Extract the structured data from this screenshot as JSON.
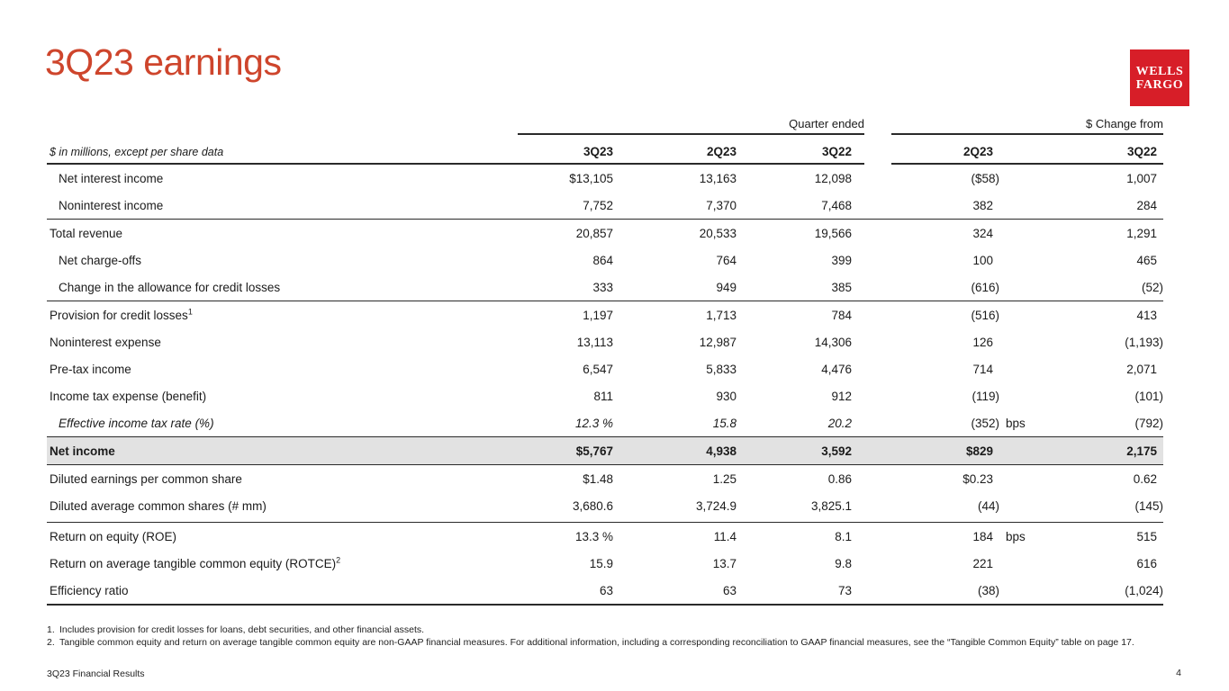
{
  "slide": {
    "title": "3Q23 earnings",
    "footer": "3Q23 Financial Results",
    "page_number": "4"
  },
  "logo": {
    "line1": "WELLS",
    "line2": "FARGO",
    "bg_color": "#D71E28",
    "text_color": "#FFFFFF"
  },
  "colors": {
    "title_red": "#CE452C",
    "highlight_row_bg": "#E2E2E2",
    "rule_line": "#2A2A2A"
  },
  "table": {
    "note": "$ in millions, except per share data",
    "group_headers": [
      {
        "label": "Quarter ended",
        "span": 3
      },
      {
        "label": "$ Change from",
        "span": 2
      }
    ],
    "column_headers": [
      "3Q23",
      "2Q23",
      "3Q22",
      "2Q23",
      "3Q22"
    ],
    "rows": [
      {
        "label": "Net interest income",
        "indent": true,
        "values": [
          "$13,105",
          "13,163",
          "12,098",
          "($58)",
          "1,007"
        ]
      },
      {
        "label": "Noninterest income",
        "indent": true,
        "values": [
          "7,752",
          "7,370",
          "7,468",
          "382",
          "284"
        ]
      },
      {
        "label": "Total revenue",
        "border_top": true,
        "values": [
          "20,857",
          "20,533",
          "19,566",
          "324",
          "1,291"
        ]
      },
      {
        "label": "Net charge-offs",
        "indent": true,
        "values": [
          "864",
          "764",
          "399",
          "100",
          "465"
        ]
      },
      {
        "label": "Change in the allowance for credit losses",
        "indent": true,
        "values": [
          "333",
          "949",
          "385",
          "(616)",
          "(52)"
        ]
      },
      {
        "label": "Provision for credit losses",
        "sup": "1",
        "border_top": true,
        "values": [
          "1,197",
          "1,713",
          "784",
          "(516)",
          "413"
        ]
      },
      {
        "label": "Noninterest expense",
        "values": [
          "13,113",
          "12,987",
          "14,306",
          "126",
          "(1,193)"
        ]
      },
      {
        "label": "Pre-tax income",
        "values": [
          "6,547",
          "5,833",
          "4,476",
          "714",
          "2,071"
        ]
      },
      {
        "label": "Income tax expense (benefit)",
        "values": [
          "811",
          "930",
          "912",
          "(119)",
          "(101)"
        ]
      },
      {
        "label": "Effective income tax rate (%)",
        "indent": true,
        "italic": true,
        "unit": "bps",
        "values": [
          "12.3 %",
          "15.8",
          "20.2",
          "(352)",
          "(792)"
        ]
      },
      {
        "label": "Net income",
        "highlight": true,
        "border_top": true,
        "values": [
          "$5,767",
          "4,938",
          "3,592",
          "$829",
          "2,175"
        ]
      },
      {
        "label": "Diluted earnings per common share",
        "border_top": true,
        "values": [
          "$1.48",
          "1.25",
          "0.86",
          "$0.23",
          "0.62"
        ]
      },
      {
        "label": "Diluted average common shares (# mm)",
        "values": [
          "3,680.6",
          "3,724.9",
          "3,825.1",
          "(44)",
          "(145)"
        ]
      },
      {
        "label": "Return on equity (ROE)",
        "border_top": true,
        "gap_before": true,
        "unit": "bps",
        "values": [
          "13.3 %",
          "11.4",
          "8.1",
          "184",
          "515"
        ]
      },
      {
        "label": "Return on average tangible common equity (ROTCE)",
        "sup": "2",
        "values": [
          "15.9",
          "13.7",
          "9.8",
          "221",
          "616"
        ]
      },
      {
        "label": "Efficiency ratio",
        "values": [
          "63",
          "63",
          "73",
          "(38)",
          "(1,024)"
        ]
      }
    ]
  },
  "footnotes": [
    {
      "num": "1.",
      "text": "Includes provision for credit losses for loans, debt securities, and other financial assets."
    },
    {
      "num": "2.",
      "text": "Tangible common equity and return on average tangible common equity are non-GAAP financial measures. For additional information, including a corresponding reconciliation to GAAP financial measures, see the “Tangible Common Equity” table on page 17."
    }
  ]
}
